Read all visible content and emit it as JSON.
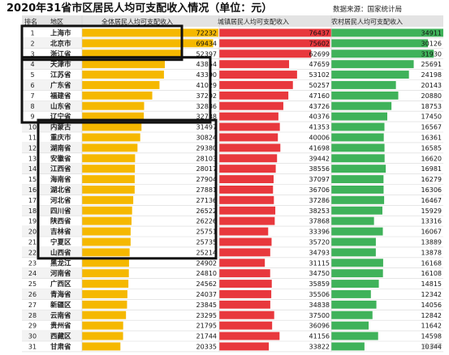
{
  "title": "2020年31省市区居民人均可支配收入情况（单位：元）",
  "source": "数据来源：国家统计局",
  "watermark": "头条号",
  "colors": {
    "total": "#f5b800",
    "urban": "#e8383d",
    "rural": "#3fb25a",
    "header_bg": "#e3e3e3",
    "highlight_box": "#111111"
  },
  "table": {
    "headers": {
      "rank": "排名",
      "region": "地区",
      "total": "全体居民人均可支配收入",
      "urban": "城镇居民人均可支配收入",
      "rural": "农村居民人均可支配收入"
    }
  },
  "highlight_groups": [
    {
      "from_rank": 1,
      "to_rank": 3
    },
    {
      "from_rank": 4,
      "to_rank": 9
    },
    {
      "from_rank": 10,
      "to_rank": 22
    }
  ],
  "chart_data": {
    "type": "bar",
    "categories": [
      "上海市",
      "北京市",
      "浙江省",
      "天津市",
      "江苏省",
      "广东省",
      "福建省",
      "山东省",
      "辽宁省",
      "内蒙古",
      "重庆市",
      "湖南省",
      "安徽省",
      "江西省",
      "海南省",
      "湖北省",
      "河北省",
      "四川省",
      "陕西省",
      "吉林省",
      "宁夏区",
      "山西省",
      "黑龙江",
      "河南省",
      "广西区",
      "青海省",
      "新疆区",
      "云南省",
      "贵州省",
      "西藏区",
      "甘肃省"
    ],
    "ranks": [
      1,
      2,
      3,
      4,
      5,
      6,
      7,
      8,
      9,
      10,
      11,
      12,
      13,
      14,
      15,
      16,
      17,
      18,
      19,
      20,
      21,
      22,
      23,
      24,
      25,
      26,
      27,
      28,
      29,
      30,
      31
    ],
    "series": [
      {
        "name": "全体居民人均可支配收入",
        "values": [
          72232,
          69434,
          52397,
          43854,
          43390,
          41029,
          37202,
          32886,
          32738,
          31497,
          30824,
          29380,
          28103,
          28017,
          27904,
          27881,
          27136,
          26522,
          26226,
          25751,
          25735,
          25214,
          24902,
          24810,
          24562,
          24037,
          23845,
          23295,
          21795,
          21744,
          20335
        ]
      },
      {
        "name": "城镇居民人均可支配收入",
        "values": [
          76437,
          75602,
          62699,
          47659,
          53102,
          50257,
          47160,
          43726,
          40376,
          41353,
          40006,
          41698,
          39442,
          38556,
          37097,
          36706,
          37286,
          38253,
          37868,
          33396,
          35720,
          34793,
          31115,
          34750,
          35859,
          35506,
          34838,
          37500,
          36096,
          41156,
          33822
        ]
      },
      {
        "name": "农村居民人均可支配收入",
        "values": [
          34911,
          30126,
          31930,
          25691,
          24198,
          20143,
          20880,
          18753,
          17450,
          16567,
          16361,
          16585,
          16620,
          16981,
          16279,
          16306,
          16467,
          15929,
          13316,
          16067,
          13889,
          13878,
          16168,
          16108,
          14815,
          12342,
          14056,
          12842,
          11642,
          14598,
          10344
        ]
      }
    ]
  }
}
